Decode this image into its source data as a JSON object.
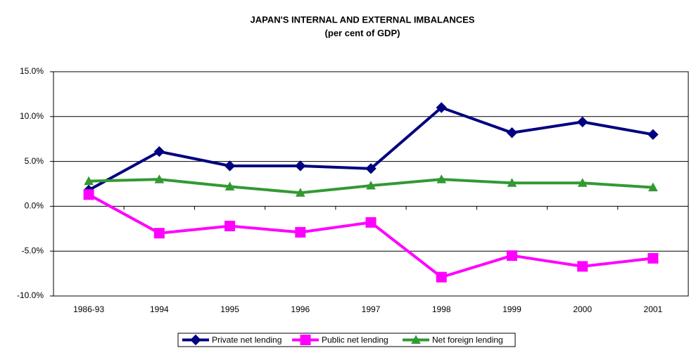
{
  "chart_data": {
    "type": "line",
    "title": "JAPAN'S INTERNAL AND EXTERNAL IMBALANCES",
    "subtitle": "(per cent of GDP)",
    "categories": [
      "1986-93",
      "1994",
      "1995",
      "1996",
      "1997",
      "1998",
      "1999",
      "2000",
      "2001"
    ],
    "series": [
      {
        "name": "Private net lending",
        "color": "#000080",
        "marker": "diamond",
        "values": [
          1.8,
          6.1,
          4.5,
          4.5,
          4.2,
          11.0,
          8.2,
          9.4,
          8.0
        ]
      },
      {
        "name": "Public net lending",
        "color": "#ff00ff",
        "marker": "square",
        "values": [
          1.3,
          -3.0,
          -2.2,
          -2.9,
          -1.8,
          -7.9,
          -5.5,
          -6.7,
          -5.8
        ]
      },
      {
        "name": "Net foreign lending",
        "color": "#339933",
        "marker": "triangle",
        "values": [
          2.8,
          3.0,
          2.2,
          1.5,
          2.3,
          3.0,
          2.6,
          2.6,
          2.1
        ]
      }
    ],
    "ylim": [
      -10,
      15
    ],
    "yticks": [
      {
        "value": -10,
        "label": "-10.0%"
      },
      {
        "value": -5,
        "label": "-5.0%"
      },
      {
        "value": 0,
        "label": "0.0%"
      },
      {
        "value": 5,
        "label": "5.0%"
      },
      {
        "value": 10,
        "label": "10.0%"
      },
      {
        "value": 15,
        "label": "15.0%"
      }
    ],
    "grid": true,
    "legend": "bottom"
  }
}
